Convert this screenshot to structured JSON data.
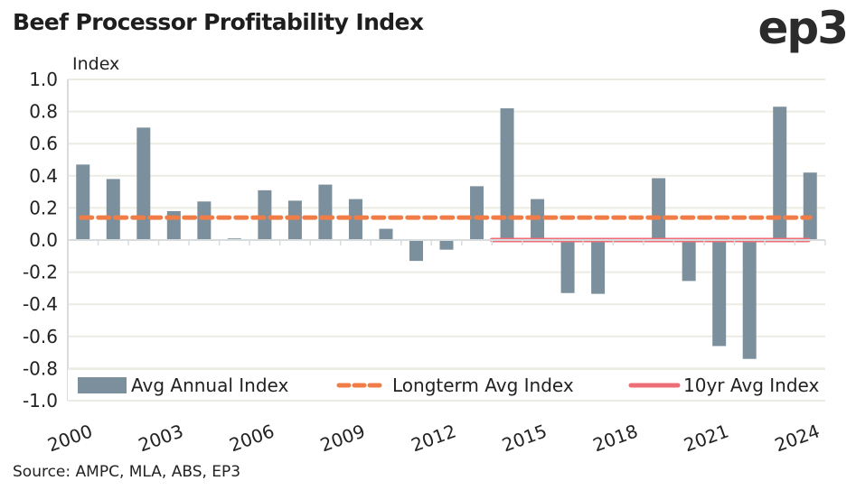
{
  "header": {
    "title": "Beef Processor Profitability Index",
    "logo": "ep3"
  },
  "footer": {
    "source": "Source: AMPC, MLA, ABS, EP3"
  },
  "colors": {
    "bar": "#7b909c",
    "longterm": "#f07d48",
    "tenyr": "#ee6e77",
    "grid": "#ecece3",
    "axis": "#d8dcdc"
  },
  "chart_data": {
    "type": "bar",
    "title": "Beef Processor Profitability Index",
    "ylabel": "Index",
    "xlabel": "",
    "ylim": [
      -1.0,
      1.0
    ],
    "yticks": [
      "1.0",
      "0.8",
      "0.6",
      "0.4",
      "0.2",
      "0.0",
      "-0.2",
      "-0.4",
      "-0.6",
      "-0.8",
      "-1.0"
    ],
    "ytick_values": [
      1.0,
      0.8,
      0.6,
      0.4,
      0.2,
      0.0,
      -0.2,
      -0.4,
      -0.6,
      -0.8,
      -1.0
    ],
    "grid": true,
    "categories": [
      "2000",
      "2001",
      "2002",
      "2003",
      "2004",
      "2005",
      "2006",
      "2007",
      "2008",
      "2009",
      "2010",
      "2011",
      "2012",
      "2013",
      "2014",
      "2015",
      "2016",
      "2017",
      "2018",
      "2019",
      "2020",
      "2021",
      "2022",
      "2023",
      "2024"
    ],
    "xtick_labels": [
      "2000",
      "2003",
      "2006",
      "2009",
      "2012",
      "2015",
      "2018",
      "2021",
      "2024"
    ],
    "xtick_indices": [
      0,
      3,
      6,
      9,
      12,
      15,
      18,
      21,
      24
    ],
    "series": [
      {
        "name": "Avg Annual Index",
        "kind": "bar",
        "values": [
          0.47,
          0.38,
          0.7,
          0.18,
          0.24,
          0.01,
          0.31,
          0.245,
          0.345,
          0.255,
          0.07,
          -0.13,
          -0.06,
          0.335,
          0.82,
          0.255,
          -0.33,
          -0.335,
          0.0,
          0.385,
          -0.255,
          -0.66,
          -0.74,
          0.83,
          0.42
        ]
      },
      {
        "name": "Longterm Avg Index",
        "kind": "line-dashed",
        "value": 0.14,
        "from_index": 0,
        "to_index": 24
      },
      {
        "name": "10yr Avg Index",
        "kind": "line-solid",
        "value": 0.0,
        "from_index": 14,
        "to_index": 24
      }
    ],
    "legend": {
      "position": "bottom-inside",
      "entries": [
        "Avg Annual Index",
        "Longterm Avg Index",
        "10yr Avg Index"
      ]
    }
  }
}
